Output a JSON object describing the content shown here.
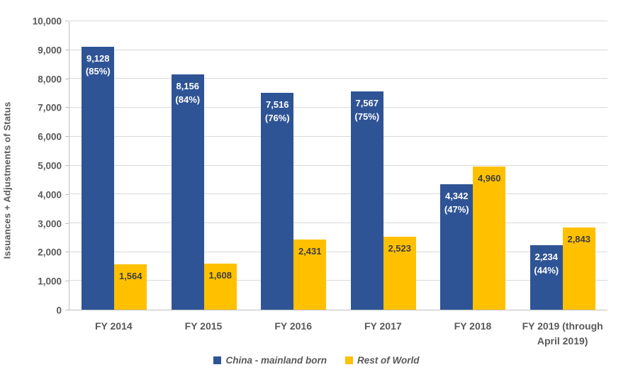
{
  "chart_data": {
    "type": "bar",
    "title": "",
    "xlabel": "",
    "ylabel": "Issuances + Adjustments of Status",
    "ylim": [
      0,
      10000
    ],
    "ytick_interval": 1000,
    "ytick_labels": [
      "0",
      "1,000",
      "2,000",
      "3,000",
      "4,000",
      "5,000",
      "6,000",
      "7,000",
      "8,000",
      "9,000",
      "10,000"
    ],
    "grid": true,
    "legend_position": "bottom",
    "categories": [
      "FY 2014",
      "FY 2015",
      "FY 2016",
      "FY 2017",
      "FY 2018",
      "FY 2019 (through\nApril 2019)"
    ],
    "series": [
      {
        "name": "China - mainland born",
        "color": "#2F5496",
        "label_color": "#FFFFFF",
        "values": [
          9128,
          8156,
          7516,
          7567,
          4342,
          2234
        ],
        "labels": [
          "9,128\n(85%)",
          "8,156\n(84%)",
          "7,516\n(76%)",
          "7,567\n(75%)",
          "4,342\n(47%)",
          "2,234\n(44%)"
        ]
      },
      {
        "name": "Rest of World",
        "color": "#FFC000",
        "label_color": "#3F3F3F",
        "values": [
          1564,
          1608,
          2431,
          2523,
          4960,
          2843
        ],
        "labels": [
          "1,564",
          "1,608",
          "2,431",
          "2,523",
          "4,960",
          "2,843"
        ]
      }
    ]
  },
  "colors": {
    "background": "#FFFFFF",
    "gridline": "#D9D9D9",
    "axis_line": "#BFBFBF",
    "axis_text": "#595959"
  }
}
